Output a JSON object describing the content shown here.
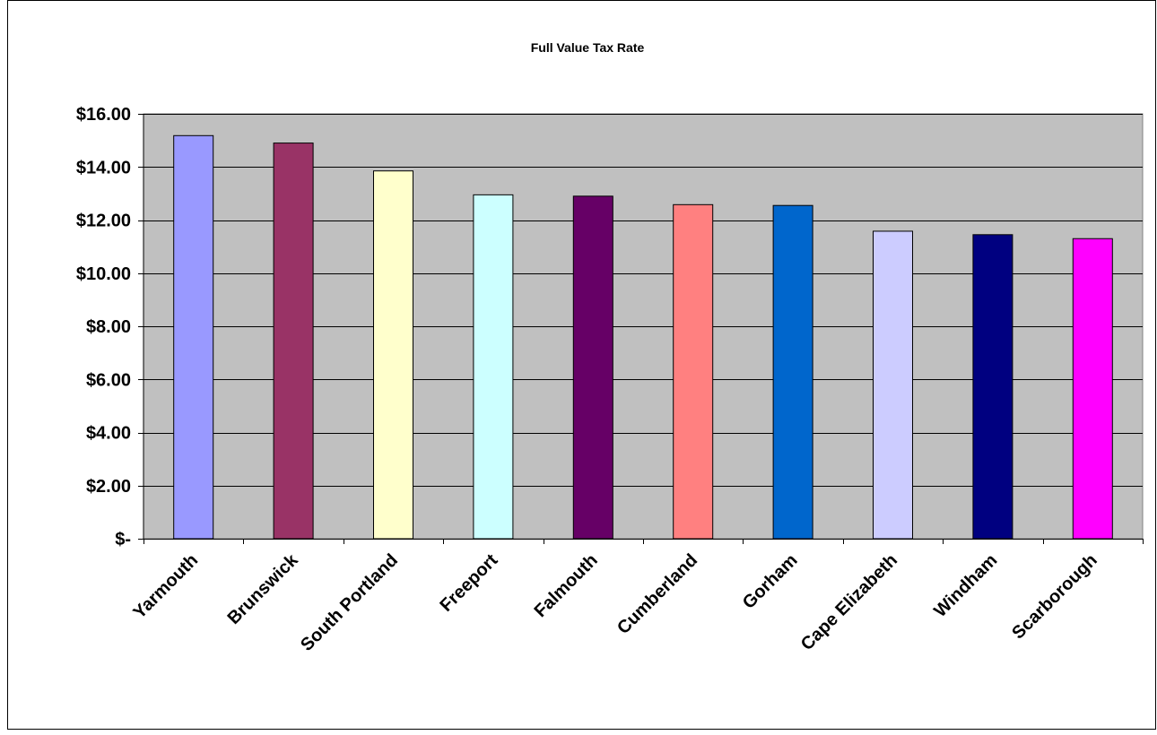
{
  "chart_data": {
    "type": "bar",
    "title": "Full Value Tax Rate",
    "xlabel": "",
    "ylabel": "",
    "categories": [
      "Yarmouth",
      "Brunswick",
      "South Portland",
      "Freeport",
      "Falmouth",
      "Cumberland",
      "Gorham",
      "Cape Elizabeth",
      "Windham",
      "Scarborough"
    ],
    "values": [
      15.18,
      14.9,
      13.85,
      12.95,
      12.9,
      12.58,
      12.55,
      11.58,
      11.45,
      11.3
    ],
    "bar_colors": [
      "#9999ff",
      "#993366",
      "#ffffcc",
      "#ccffff",
      "#660066",
      "#ff8080",
      "#0066cc",
      "#ccccff",
      "#000080",
      "#ff00ff"
    ],
    "ylim": [
      0,
      16
    ],
    "y_ticks": [
      {
        "value": 0,
        "label": "$-"
      },
      {
        "value": 2,
        "label": "$2.00"
      },
      {
        "value": 4,
        "label": "$4.00"
      },
      {
        "value": 6,
        "label": "$6.00"
      },
      {
        "value": 8,
        "label": "$8.00"
      },
      {
        "value": 10,
        "label": "$10.00"
      },
      {
        "value": 12,
        "label": "$12.00"
      },
      {
        "value": 14,
        "label": "$14.00"
      },
      {
        "value": 16,
        "label": "$16.00"
      }
    ],
    "grid": true,
    "legend": "none",
    "plot_background": "#c0c0c0"
  }
}
